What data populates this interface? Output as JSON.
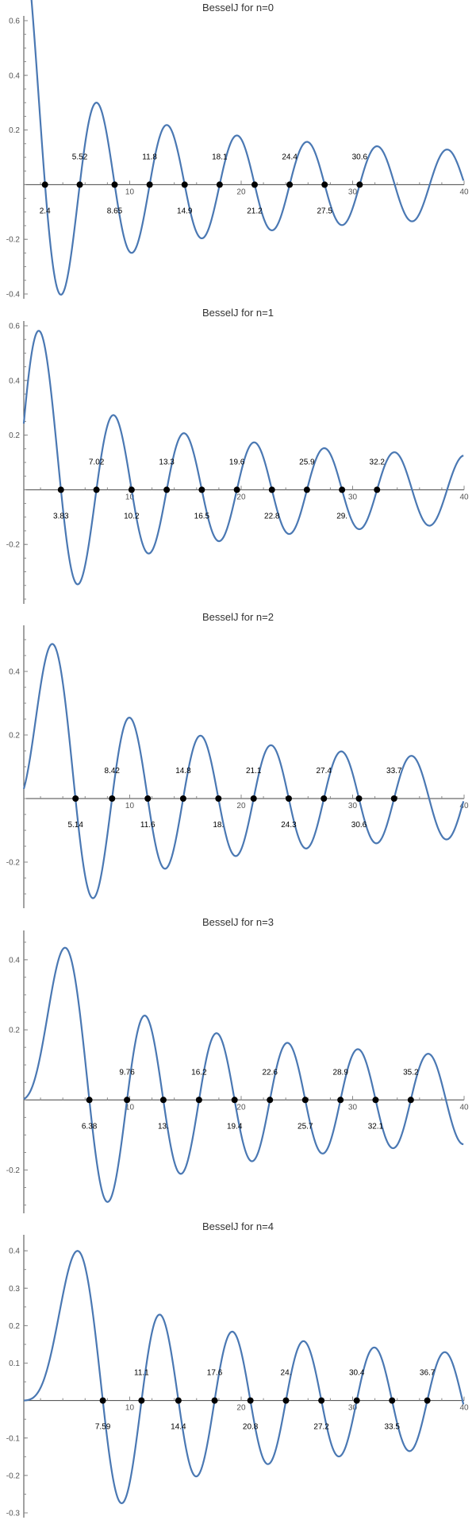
{
  "chart_data": [
    {
      "type": "line",
      "title": "BesselJ for n=0",
      "order": 0,
      "xlim": [
        0.5,
        40
      ],
      "ylim": [
        -0.4,
        0.6
      ],
      "xticks": [
        10,
        20,
        30,
        40
      ],
      "yticks": [
        -0.4,
        -0.2,
        0.2,
        0.4,
        0.6
      ],
      "ytick_labels": [
        "-0.4",
        "-0.2",
        "0.2",
        "0.4",
        "0.6"
      ],
      "zeros": [
        2.4,
        5.52,
        8.65,
        11.79,
        14.93,
        18.07,
        21.21,
        24.35,
        27.49,
        30.63
      ],
      "zero_labels": [
        "2.4",
        "5.52",
        "8.65",
        "11.8",
        "14.9",
        "18.1",
        "21.2",
        "24.4",
        "27.5",
        "30.6"
      ]
    },
    {
      "type": "line",
      "title": "BesselJ for n=1",
      "order": 1,
      "xlim": [
        0.5,
        40
      ],
      "ylim": [
        -0.4,
        0.6
      ],
      "xticks": [
        10,
        20,
        30,
        40
      ],
      "yticks": [
        -0.2,
        0.2,
        0.4,
        0.6
      ],
      "ytick_labels": [
        "-0.2",
        "0.2",
        "0.4",
        "0.6"
      ],
      "zeros": [
        3.83,
        7.02,
        10.17,
        13.32,
        16.47,
        19.62,
        22.76,
        25.9,
        29.05,
        32.19
      ],
      "zero_labels": [
        "3.83",
        "7.02",
        "10.2",
        "13.3",
        "16.5",
        "19.6",
        "22.8",
        "25.9",
        "29.",
        "32.2"
      ]
    },
    {
      "type": "line",
      "title": "BesselJ for n=2",
      "order": 2,
      "xlim": [
        0.5,
        40
      ],
      "ylim": [
        -0.33,
        0.53
      ],
      "xticks": [
        10,
        20,
        30,
        40
      ],
      "yticks": [
        -0.2,
        0.2,
        0.4
      ],
      "ytick_labels": [
        "-0.2",
        "0.2",
        "0.4"
      ],
      "zeros": [
        5.14,
        8.42,
        11.62,
        14.8,
        17.96,
        21.12,
        24.27,
        27.42,
        30.57,
        33.72
      ],
      "zero_labels": [
        "5.14",
        "8.42",
        "11.6",
        "14.8",
        "18.",
        "21.1",
        "24.3",
        "27.4",
        "30.6",
        "33.7"
      ]
    },
    {
      "type": "line",
      "title": "BesselJ for n=3",
      "order": 3,
      "xlim": [
        0.5,
        40
      ],
      "ylim": [
        -0.31,
        0.47
      ],
      "xticks": [
        10,
        20,
        30,
        40
      ],
      "yticks": [
        -0.2,
        0.2,
        0.4
      ],
      "ytick_labels": [
        "-0.2",
        "0.2",
        "0.4"
      ],
      "zeros": [
        6.38,
        9.76,
        13.02,
        16.22,
        19.41,
        22.58,
        25.75,
        28.91,
        32.06,
        35.22
      ],
      "zero_labels": [
        "6.38",
        "9.76",
        "13.",
        "16.2",
        "19.4",
        "22.6",
        "25.7",
        "28.9",
        "32.1",
        "35.2"
      ]
    },
    {
      "type": "line",
      "title": "BesselJ for n=4",
      "order": 4,
      "xlim": [
        0.5,
        40
      ],
      "ylim": [
        -0.3,
        0.43
      ],
      "xticks": [
        10,
        20,
        30,
        40
      ],
      "yticks": [
        -0.3,
        -0.2,
        -0.1,
        0.1,
        0.2,
        0.3,
        0.4
      ],
      "ytick_labels": [
        "-0.3",
        "-0.2",
        "-0.1",
        "0.1",
        "0.2",
        "0.3",
        "0.4"
      ],
      "zeros": [
        7.59,
        11.06,
        14.37,
        17.62,
        20.83,
        24.02,
        27.2,
        30.37,
        33.54,
        36.7
      ],
      "zero_labels": [
        "7.59",
        "11.1",
        "14.4",
        "17.6",
        "20.8",
        "24.",
        "27.2",
        "30.4",
        "33.5",
        "36.7"
      ]
    }
  ],
  "colors": {
    "curve": "#4a78b3",
    "axis": "#444444",
    "dot": "#000000"
  }
}
